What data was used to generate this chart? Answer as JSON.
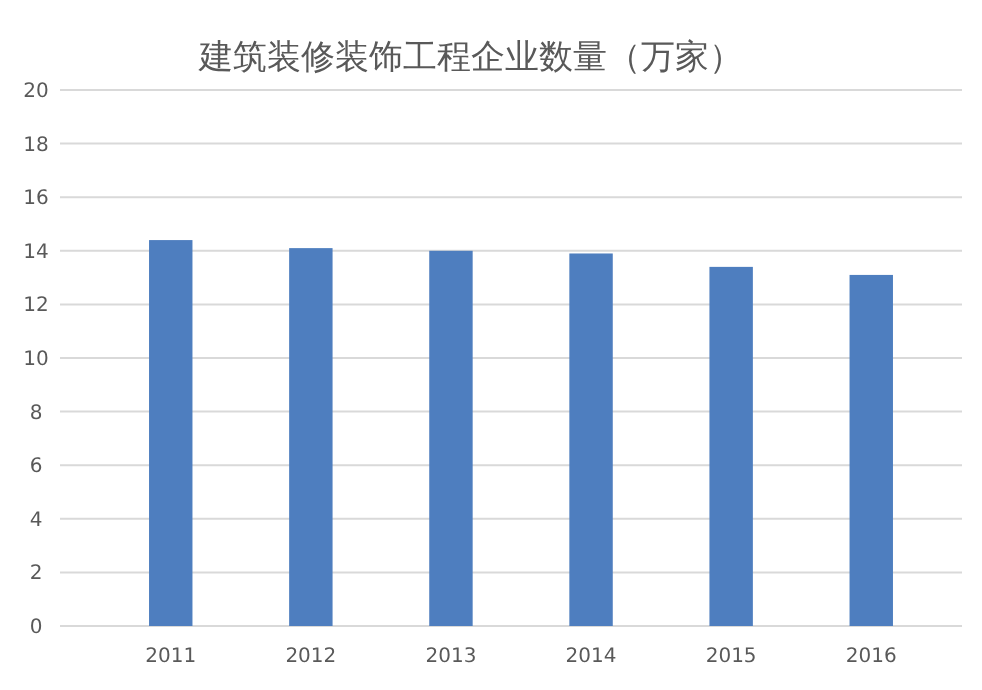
{
  "chart_data": {
    "type": "bar",
    "title": "建筑装修装饰工程企业数量（万家）",
    "categories": [
      "2011",
      "2012",
      "2013",
      "2014",
      "2015",
      "2016"
    ],
    "values": [
      14.4,
      14.1,
      14.0,
      13.9,
      13.4,
      13.1
    ],
    "color": "#4e7ebf",
    "ylim": [
      0,
      20
    ],
    "yticks": [
      0,
      2,
      4,
      6,
      8,
      10,
      12,
      14,
      16,
      18,
      20
    ],
    "grid": "y"
  }
}
